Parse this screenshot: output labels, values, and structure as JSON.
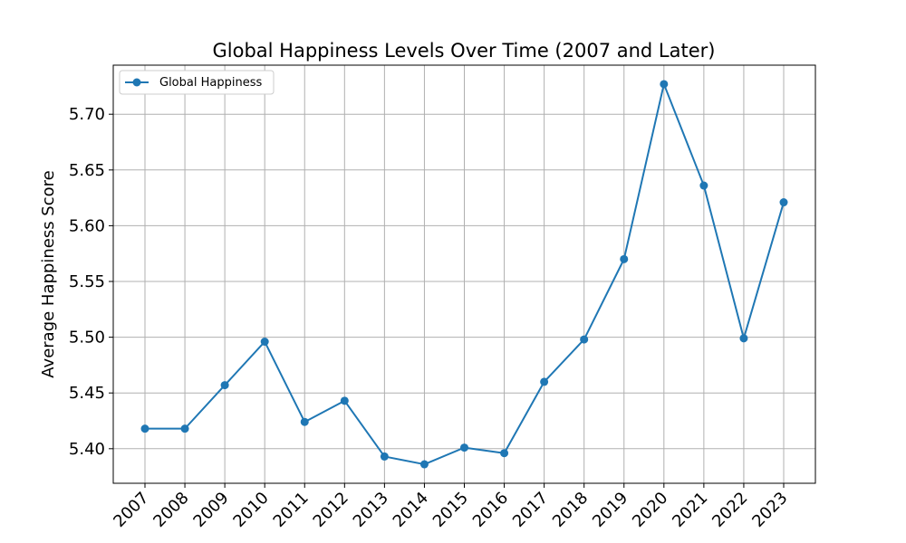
{
  "chart_data": {
    "type": "line",
    "title": "Global Happiness Levels Over Time (2007 and Later)",
    "xlabel": "",
    "ylabel": "Average Happiness Score",
    "x": [
      "2007",
      "2008",
      "2009",
      "2010",
      "2011",
      "2012",
      "2013",
      "2014",
      "2015",
      "2016",
      "2017",
      "2018",
      "2019",
      "2020",
      "2021",
      "2022",
      "2023"
    ],
    "series": [
      {
        "name": "Global Happiness",
        "values": [
          5.418,
          5.418,
          5.457,
          5.496,
          5.424,
          5.443,
          5.393,
          5.386,
          5.401,
          5.396,
          5.46,
          5.498,
          5.57,
          5.727,
          5.636,
          5.499,
          5.621
        ],
        "color": "#1f77b4",
        "marker": "circle"
      }
    ],
    "yticks": [
      "5.40",
      "5.45",
      "5.50",
      "5.55",
      "5.60",
      "5.65",
      "5.70"
    ],
    "ylim": [
      5.369,
      5.744
    ],
    "grid": true,
    "legend_position": "top-left"
  }
}
